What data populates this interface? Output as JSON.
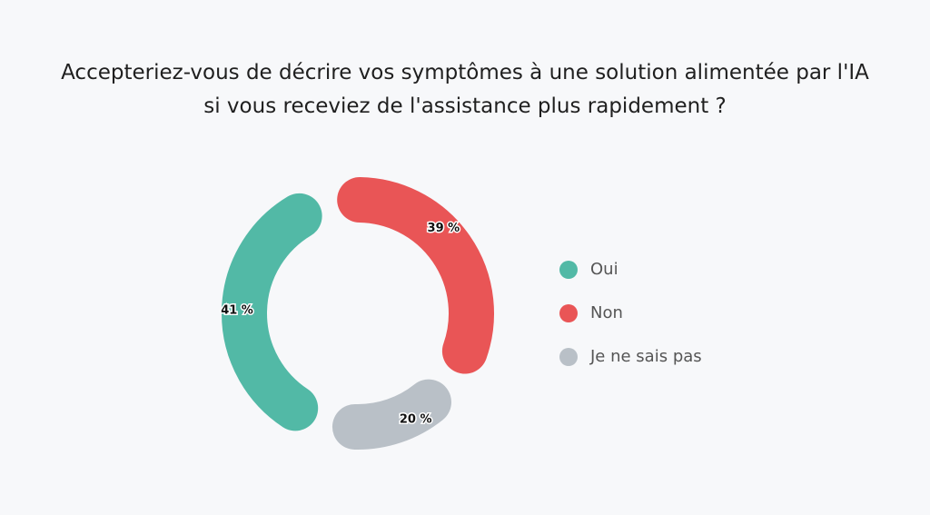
{
  "chart_data": {
    "type": "donut",
    "title": "Accepteriez-vous de décrire vos symptômes à une solution alimentée par l'IA si vous receviez de l'assistance plus rapidement ?",
    "categories": [
      "Oui",
      "Non",
      "Je ne sais pas"
    ],
    "values": [
      41,
      39,
      20
    ],
    "value_labels": [
      "41 %",
      "39 %",
      "20 %"
    ],
    "colors": [
      "#52b9a6",
      "#e95556",
      "#b9c0c7"
    ],
    "legend": "right"
  }
}
